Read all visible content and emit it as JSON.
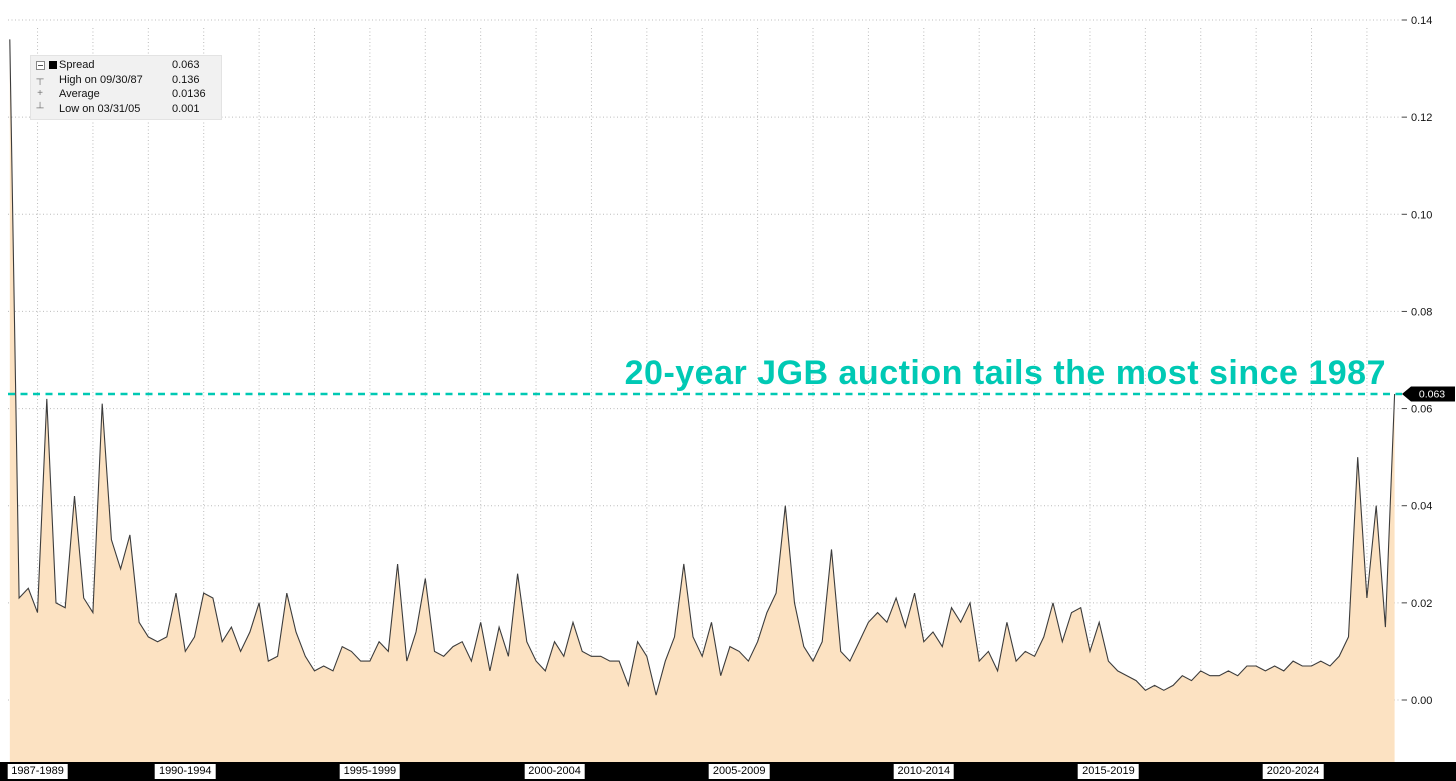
{
  "annotation": {
    "text": "20-year JGB auction tails the most since 1987",
    "color": "#00c9b4"
  },
  "legend": {
    "rows": [
      {
        "marker": "square",
        "label": "Spread",
        "value": "0.063"
      },
      {
        "marker": "high",
        "label": "High on 09/30/87",
        "value": "0.136"
      },
      {
        "marker": "average",
        "label": "Average",
        "value": "0.0136"
      },
      {
        "marker": "low",
        "label": "Low on 03/31/05",
        "value": "0.001"
      }
    ]
  },
  "chart_data": {
    "type": "area",
    "series_name": "Spread",
    "title": "20-year JGB auction tails the most since 1987",
    "x_start": 1987.75,
    "x_step": 0.25,
    "x_domain": [
      1987.7,
      2025.45
    ],
    "ylim": [
      0,
      0.14
    ],
    "yticks": [
      0.0,
      0.02,
      0.04,
      0.06,
      0.08,
      0.1,
      0.12,
      0.14
    ],
    "ytick_labels": [
      "0.00",
      "0.02",
      "0.04",
      "0.06",
      "0.08",
      "0.10",
      "0.12",
      "0.14"
    ],
    "x_groups": [
      {
        "label": "1987-1989",
        "center_year": 1988.5
      },
      {
        "label": "1990-1994",
        "center_year": 1992.5
      },
      {
        "label": "1995-1999",
        "center_year": 1997.5
      },
      {
        "label": "2000-2004",
        "center_year": 2002.5
      },
      {
        "label": "2005-2009",
        "center_year": 2007.5
      },
      {
        "label": "2010-2014",
        "center_year": 2012.5
      },
      {
        "label": "2015-2019",
        "center_year": 2017.5
      },
      {
        "label": "2020-2024",
        "center_year": 2022.5
      }
    ],
    "values": [
      0.136,
      0.021,
      0.023,
      0.018,
      0.062,
      0.02,
      0.019,
      0.042,
      0.021,
      0.018,
      0.061,
      0.033,
      0.027,
      0.034,
      0.016,
      0.013,
      0.012,
      0.013,
      0.022,
      0.01,
      0.013,
      0.022,
      0.021,
      0.012,
      0.015,
      0.01,
      0.014,
      0.02,
      0.008,
      0.009,
      0.022,
      0.014,
      0.009,
      0.006,
      0.007,
      0.006,
      0.011,
      0.01,
      0.008,
      0.008,
      0.012,
      0.01,
      0.028,
      0.008,
      0.014,
      0.025,
      0.01,
      0.009,
      0.011,
      0.012,
      0.008,
      0.016,
      0.006,
      0.015,
      0.009,
      0.026,
      0.012,
      0.008,
      0.006,
      0.012,
      0.009,
      0.016,
      0.01,
      0.009,
      0.009,
      0.008,
      0.008,
      0.003,
      0.012,
      0.009,
      0.001,
      0.008,
      0.013,
      0.028,
      0.013,
      0.009,
      0.016,
      0.005,
      0.011,
      0.01,
      0.008,
      0.012,
      0.018,
      0.022,
      0.04,
      0.02,
      0.011,
      0.008,
      0.012,
      0.031,
      0.01,
      0.008,
      0.012,
      0.016,
      0.018,
      0.016,
      0.021,
      0.015,
      0.022,
      0.012,
      0.014,
      0.011,
      0.019,
      0.016,
      0.02,
      0.008,
      0.01,
      0.006,
      0.016,
      0.008,
      0.01,
      0.009,
      0.013,
      0.02,
      0.012,
      0.018,
      0.019,
      0.01,
      0.016,
      0.008,
      0.006,
      0.005,
      0.004,
      0.002,
      0.003,
      0.002,
      0.003,
      0.005,
      0.004,
      0.006,
      0.005,
      0.005,
      0.006,
      0.005,
      0.007,
      0.007,
      0.006,
      0.007,
      0.006,
      0.008,
      0.007,
      0.007,
      0.008,
      0.007,
      0.009,
      0.013,
      0.05,
      0.021,
      0.04,
      0.015,
      0.063
    ],
    "high": {
      "date": "09/30/87",
      "value": 0.136
    },
    "low": {
      "date": "03/31/05",
      "value": 0.001
    },
    "average": 0.0136,
    "last": {
      "value": 0.063,
      "label": "0.063"
    },
    "colors": {
      "line": "#3c3c3c",
      "fill": "#fce2c2",
      "reference": "#00c9b4",
      "grid": "#bcbcbc",
      "axis_text": "#111111",
      "badge_bg": "#000000",
      "badge_text": "#ffffff"
    },
    "grid": true,
    "legend_position": "top-left"
  }
}
